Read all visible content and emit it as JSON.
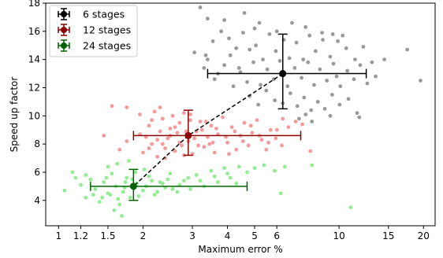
{
  "chart_data": {
    "type": "scatter",
    "title": "",
    "xlabel": "Maximum error %",
    "ylabel": "Speed up factor",
    "xscale": "log",
    "xlim": [
      0.9,
      22
    ],
    "ylim": [
      2.2,
      18
    ],
    "xticks": [
      1,
      1.2,
      1.5,
      2,
      3,
      4,
      5,
      6,
      10,
      15,
      20
    ],
    "xtick_labels": [
      "1",
      "1.2",
      "1.5",
      "2",
      "3",
      "4",
      "5",
      "6",
      "10",
      "15",
      "20"
    ],
    "yticks": [
      4,
      6,
      8,
      10,
      12,
      14,
      16,
      18
    ],
    "ytick_labels": [
      "4",
      "6",
      "8",
      "10",
      "12",
      "14",
      "16",
      "18"
    ],
    "grid": false,
    "legend_position": "top-left",
    "series": [
      {
        "name": "6 stages",
        "point_color": "#999999",
        "marker_color": "#000000",
        "mean": {
          "x": 6.3,
          "y": 13.0
        },
        "x_errorbar": [
          3.4,
          12.5
        ],
        "y_errorbar": [
          10.5,
          15.8
        ],
        "points": [
          [
            3.2,
            17.7
          ],
          [
            3.4,
            16.9
          ],
          [
            3.9,
            16.8
          ],
          [
            4.6,
            17.3
          ],
          [
            5.2,
            16.6
          ],
          [
            6.8,
            16.6
          ],
          [
            8.7,
            15.9
          ],
          [
            17.5,
            14.7
          ],
          [
            19.5,
            12.5
          ],
          [
            13.5,
            12.8
          ],
          [
            3.05,
            14.5
          ],
          [
            3.35,
            14.3
          ],
          [
            3.55,
            15.3
          ],
          [
            3.8,
            16.0
          ],
          [
            4.05,
            15.5
          ],
          [
            4.3,
            14.8
          ],
          [
            4.55,
            15.9
          ],
          [
            4.8,
            14.7
          ],
          [
            5.05,
            15.0
          ],
          [
            5.35,
            14.0
          ],
          [
            5.65,
            15.8
          ],
          [
            5.95,
            14.6
          ],
          [
            6.35,
            15.4
          ],
          [
            6.65,
            14.1
          ],
          [
            7.05,
            15.2
          ],
          [
            7.45,
            14.0
          ],
          [
            7.85,
            15.7
          ],
          [
            8.25,
            14.6
          ],
          [
            8.75,
            15.4
          ],
          [
            9.3,
            14.2
          ],
          [
            9.9,
            15.3
          ],
          [
            10.6,
            14.8
          ],
          [
            11.4,
            14.0
          ],
          [
            12.2,
            14.9
          ],
          [
            13.1,
            13.8
          ],
          [
            14.5,
            14.0
          ],
          [
            3.3,
            13.4
          ],
          [
            3.6,
            12.6
          ],
          [
            3.9,
            13.6
          ],
          [
            4.2,
            12.1
          ],
          [
            4.45,
            13.1
          ],
          [
            4.7,
            12.4
          ],
          [
            4.95,
            13.8
          ],
          [
            5.25,
            12.2
          ],
          [
            5.55,
            13.3
          ],
          [
            5.85,
            12.6
          ],
          [
            6.15,
            13.9
          ],
          [
            6.55,
            12.1
          ],
          [
            6.95,
            13.4
          ],
          [
            7.35,
            12.7
          ],
          [
            7.75,
            13.8
          ],
          [
            8.15,
            12.2
          ],
          [
            8.55,
            13.3
          ],
          [
            9.05,
            12.5
          ],
          [
            9.55,
            13.7
          ],
          [
            10.1,
            12.1
          ],
          [
            10.7,
            13.2
          ],
          [
            11.3,
            12.6
          ],
          [
            11.9,
            13.6
          ],
          [
            12.6,
            12.3
          ],
          [
            4.8,
            11.4
          ],
          [
            5.15,
            10.8
          ],
          [
            5.5,
            11.8
          ],
          [
            5.9,
            11.1
          ],
          [
            6.3,
            10.9
          ],
          [
            6.7,
            11.6
          ],
          [
            7.1,
            10.7
          ],
          [
            7.5,
            11.3
          ],
          [
            7.95,
            10.4
          ],
          [
            8.4,
            11.0
          ],
          [
            8.9,
            10.5
          ],
          [
            9.45,
            11.5
          ],
          [
            10.05,
            10.8
          ],
          [
            10.8,
            11.2
          ],
          [
            11.6,
            10.2
          ],
          [
            7.2,
            9.8
          ],
          [
            7.6,
            10.1
          ],
          [
            8.0,
            9.6
          ],
          [
            9.3,
            10.0
          ],
          [
            11.8,
            9.9
          ],
          [
            3.4,
            14.0
          ],
          [
            4.1,
            14.3
          ],
          [
            5.0,
            16.2
          ],
          [
            6.0,
            16.0
          ],
          [
            7.6,
            16.3
          ],
          [
            9.5,
            15.8
          ],
          [
            10.3,
            15.7
          ],
          [
            3.7,
            13.0
          ],
          [
            4.4,
            13.4
          ],
          [
            9.8,
            12.8
          ]
        ]
      },
      {
        "name": "12 stages",
        "point_color": "#f59a9a",
        "marker_color": "#8b0000",
        "mean": {
          "x": 2.9,
          "y": 8.6
        },
        "x_errorbar": [
          1.85,
          7.3
        ],
        "y_errorbar": [
          7.2,
          10.4
        ],
        "points": [
          [
            1.55,
            10.7
          ],
          [
            1.75,
            10.6
          ],
          [
            1.95,
            10.1
          ],
          [
            1.45,
            8.6
          ],
          [
            1.75,
            8.2
          ],
          [
            1.95,
            8.7
          ],
          [
            1.65,
            7.6
          ],
          [
            2.0,
            7.4
          ],
          [
            2.1,
            9.3
          ],
          [
            2.15,
            8.0
          ],
          [
            2.2,
            10.3
          ],
          [
            2.25,
            7.1
          ],
          [
            2.3,
            8.9
          ],
          [
            2.35,
            9.8
          ],
          [
            2.4,
            7.7
          ],
          [
            2.45,
            8.4
          ],
          [
            2.5,
            9.1
          ],
          [
            2.55,
            10.0
          ],
          [
            2.6,
            7.5
          ],
          [
            2.65,
            8.8
          ],
          [
            2.7,
            9.5
          ],
          [
            2.75,
            7.9
          ],
          [
            2.8,
            10.2
          ],
          [
            2.9,
            8.2
          ],
          [
            2.95,
            9.7
          ],
          [
            3.0,
            7.3
          ],
          [
            3.1,
            8.9
          ],
          [
            3.2,
            9.6
          ],
          [
            3.3,
            7.8
          ],
          [
            3.4,
            8.5
          ],
          [
            3.5,
            9.3
          ],
          [
            3.6,
            7.4
          ],
          [
            3.7,
            8.7
          ],
          [
            3.85,
            9.9
          ],
          [
            4.0,
            8.1
          ],
          [
            4.15,
            9.2
          ],
          [
            4.3,
            7.6
          ],
          [
            4.45,
            8.6
          ],
          [
            4.6,
            9.5
          ],
          [
            4.75,
            7.9
          ],
          [
            4.9,
            8.8
          ],
          [
            5.1,
            9.7
          ],
          [
            5.3,
            8.3
          ],
          [
            5.5,
            7.6
          ],
          [
            5.7,
            9.0
          ],
          [
            5.95,
            8.4
          ],
          [
            6.25,
            7.9
          ],
          [
            6.6,
            9.2
          ],
          [
            7.0,
            9.6
          ],
          [
            7.4,
            9.4
          ],
          [
            7.9,
            7.5
          ],
          [
            2.05,
            8.5
          ],
          [
            2.15,
            9.7
          ],
          [
            2.25,
            8.3
          ],
          [
            2.35,
            8.0
          ],
          [
            2.5,
            8.6
          ],
          [
            2.6,
            9.2
          ],
          [
            2.7,
            8.1
          ],
          [
            2.85,
            8.9
          ],
          [
            3.05,
            8.4
          ],
          [
            3.25,
            9.0
          ],
          [
            3.45,
            8.0
          ],
          [
            3.65,
            9.1
          ],
          [
            3.95,
            8.5
          ],
          [
            4.25,
            8.9
          ],
          [
            4.55,
            8.2
          ],
          [
            4.85,
            9.3
          ],
          [
            5.2,
            8.6
          ],
          [
            5.6,
            8.1
          ],
          [
            6.0,
            9.0
          ],
          [
            2.1,
            7.7
          ],
          [
            2.4,
            7.0
          ],
          [
            2.8,
            7.2
          ],
          [
            3.15,
            7.9
          ],
          [
            3.55,
            8.1
          ],
          [
            4.05,
            7.3
          ],
          [
            2.3,
            10.6
          ],
          [
            2.95,
            10.1
          ],
          [
            3.35,
            9.6
          ],
          [
            6.3,
            9.8
          ]
        ]
      },
      {
        "name": "24 stages",
        "point_color": "#90ee90",
        "marker_color": "#006400",
        "mean": {
          "x": 1.85,
          "y": 5.0
        },
        "x_errorbar": [
          1.3,
          4.7
        ],
        "y_errorbar": [
          4.0,
          6.2
        ],
        "points": [
          [
            1.05,
            4.7
          ],
          [
            1.12,
            6.0
          ],
          [
            1.2,
            5.1
          ],
          [
            1.25,
            4.2
          ],
          [
            1.3,
            5.5
          ],
          [
            1.35,
            4.8
          ],
          [
            1.4,
            3.9
          ],
          [
            1.45,
            5.3
          ],
          [
            1.5,
            4.5
          ],
          [
            1.55,
            5.9
          ],
          [
            1.6,
            5.0
          ],
          [
            1.65,
            3.7
          ],
          [
            1.7,
            4.6
          ],
          [
            1.75,
            5.6
          ],
          [
            1.8,
            4.2
          ],
          [
            1.9,
            5.2
          ],
          [
            2.0,
            4.7
          ],
          [
            2.1,
            5.7
          ],
          [
            2.2,
            4.4
          ],
          [
            2.3,
            5.3
          ],
          [
            2.4,
            4.9
          ],
          [
            2.5,
            5.9
          ],
          [
            2.65,
            4.6
          ],
          [
            2.8,
            5.4
          ],
          [
            2.95,
            4.8
          ],
          [
            3.1,
            5.8
          ],
          [
            3.3,
            5.0
          ],
          [
            3.5,
            6.1
          ],
          [
            3.7,
            5.3
          ],
          [
            3.9,
            6.3
          ],
          [
            4.1,
            5.6
          ],
          [
            4.4,
            6.4
          ],
          [
            4.7,
            6.0
          ],
          [
            5.0,
            6.3
          ],
          [
            5.4,
            6.5
          ],
          [
            5.9,
            6.1
          ],
          [
            6.4,
            6.4
          ],
          [
            1.58,
            3.3
          ],
          [
            1.68,
            2.9
          ],
          [
            1.5,
            6.4
          ],
          [
            1.62,
            6.6
          ],
          [
            1.78,
            6.8
          ],
          [
            1.33,
            4.4
          ],
          [
            1.43,
            4.2
          ],
          [
            1.53,
            4.4
          ],
          [
            1.63,
            4.1
          ],
          [
            1.73,
            5.3
          ],
          [
            1.83,
            5.5
          ],
          [
            1.93,
            4.3
          ],
          [
            2.05,
            5.0
          ],
          [
            2.15,
            5.4
          ],
          [
            2.25,
            4.6
          ],
          [
            2.35,
            5.2
          ],
          [
            2.45,
            5.5
          ],
          [
            2.55,
            4.8
          ],
          [
            2.7,
            5.1
          ],
          [
            2.9,
            5.6
          ],
          [
            3.2,
            5.4
          ],
          [
            3.6,
            5.7
          ],
          [
            4.0,
            5.9
          ],
          [
            4.3,
            5.2
          ],
          [
            8.0,
            6.5
          ],
          [
            11.0,
            3.5
          ],
          [
            1.15,
            5.6
          ],
          [
            1.25,
            5.8
          ],
          [
            1.48,
            5.6
          ],
          [
            1.72,
            4.9
          ],
          [
            1.88,
            6.0
          ],
          [
            2.02,
            6.2
          ],
          [
            6.2,
            4.5
          ]
        ]
      }
    ]
  }
}
